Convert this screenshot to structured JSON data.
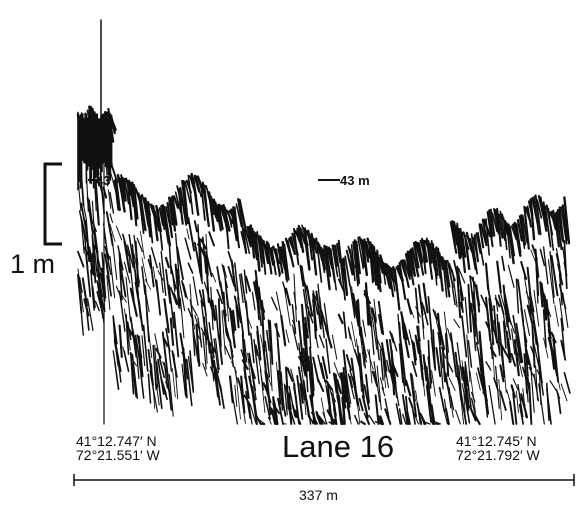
{
  "scale_bar": {
    "label": "1 m"
  },
  "depth_markers": {
    "left": "43 m",
    "right": "43 m"
  },
  "start_position": {
    "lat": "41°12.747′ N",
    "lon": "72°21.551′ W"
  },
  "end_position": {
    "lat": "41°12.745′ N",
    "lon": "72°21.792′ W"
  },
  "lane": {
    "title": "Lane 16"
  },
  "distance": {
    "label": "337 m"
  },
  "colors": {
    "ink": "#111111",
    "background": "#ffffff"
  }
}
